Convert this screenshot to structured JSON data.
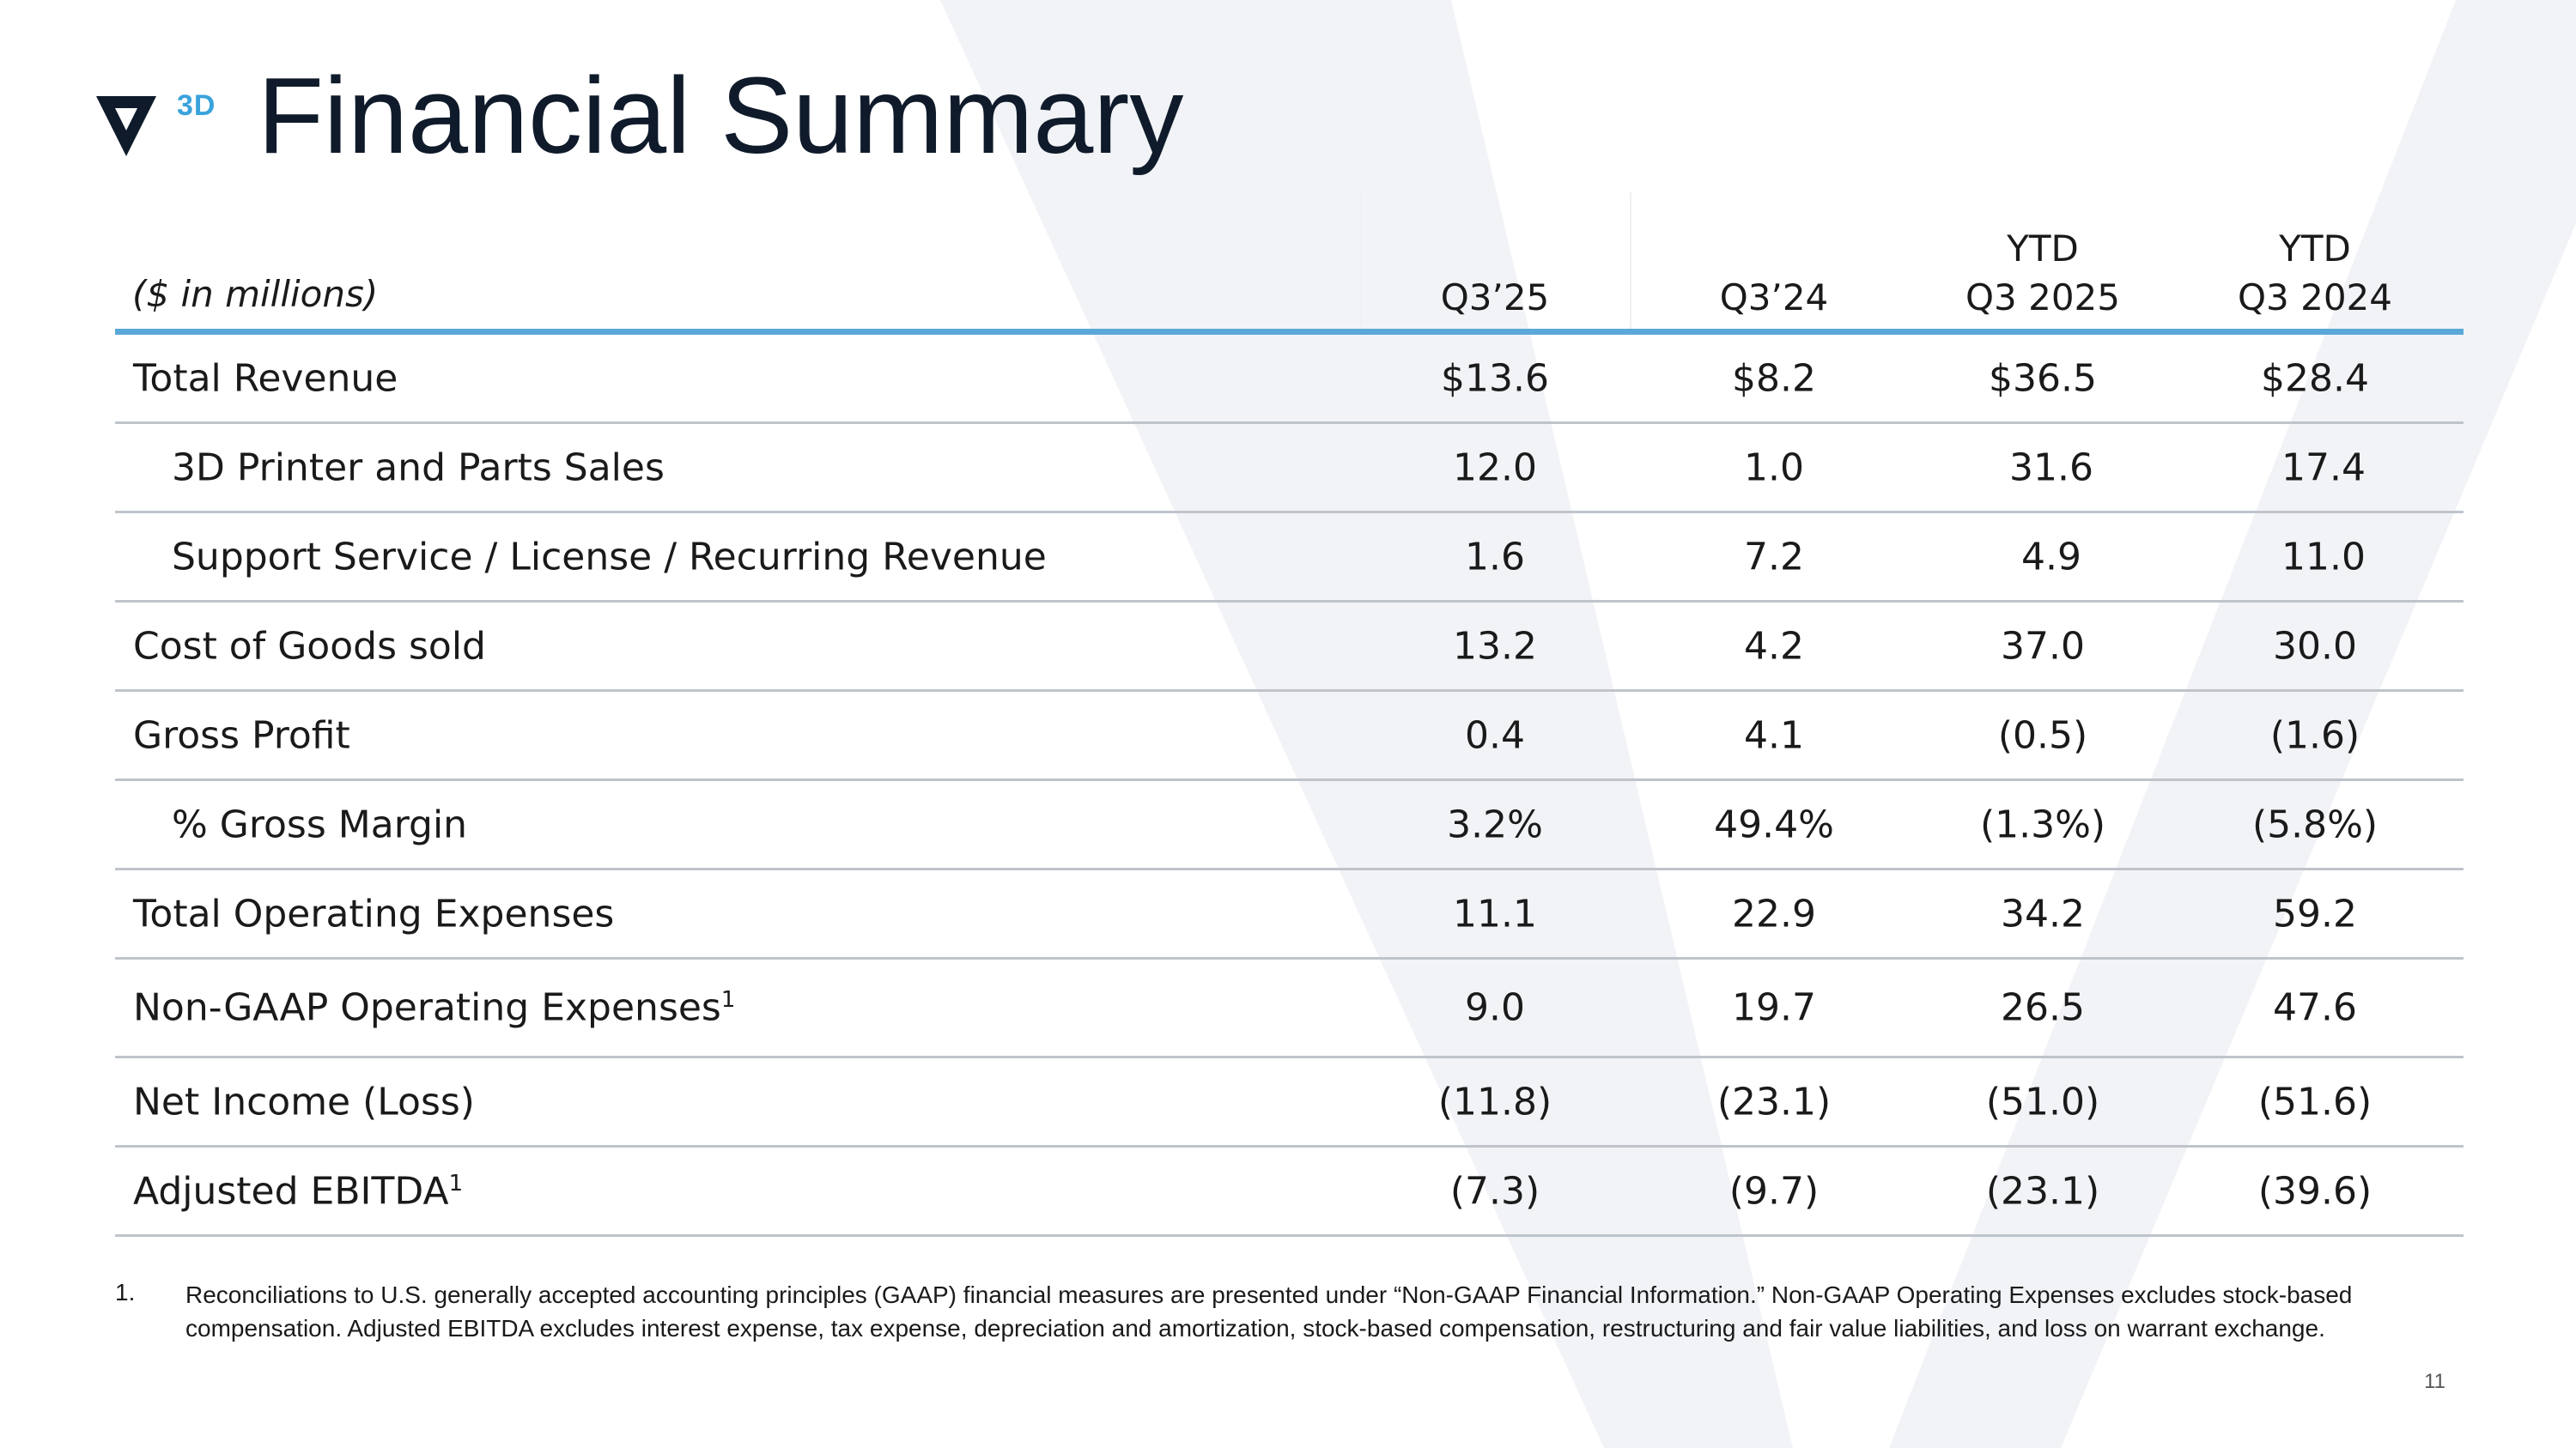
{
  "brand": {
    "logo_suffix": "3D",
    "accent": "#3aa3dc",
    "logo_color": "#0f1b2b"
  },
  "title": "Financial Summary",
  "table": {
    "unit_label": "($ in millions)",
    "columns": [
      {
        "line1": "",
        "line2": "Q3’25"
      },
      {
        "line1": "",
        "line2": "Q3’24"
      },
      {
        "line1": "YTD",
        "line2": "Q3 2025"
      },
      {
        "line1": "YTD",
        "line2": "Q3 2024"
      }
    ],
    "rows": [
      {
        "label": "Total Revenue",
        "values": [
          "$13.6",
          "$8.2",
          "$36.5",
          "$28.4"
        ]
      },
      {
        "label": "3D Printer and Parts Sales",
        "values": [
          "12.0",
          "1.0",
          "31.6",
          "17.4"
        ]
      },
      {
        "label": "Support Service / License / Recurring Revenue",
        "values": [
          "1.6",
          "7.2",
          "4.9",
          "11.0"
        ]
      },
      {
        "label": "Cost of Goods sold",
        "values": [
          "13.2",
          "4.2",
          "37.0",
          "30.0"
        ]
      },
      {
        "label": "Gross Profit",
        "values": [
          "0.4",
          "4.1",
          "(0.5)",
          "(1.6)"
        ]
      },
      {
        "label": "% Gross Margin",
        "values": [
          "3.2%",
          "49.4%",
          "(1.3%)",
          "(5.8%)"
        ]
      },
      {
        "label": "Total Operating Expenses",
        "values": [
          "11.1",
          "22.9",
          "34.2",
          "59.2"
        ]
      },
      {
        "label": "Non-GAAP Operating Expenses",
        "sup": "1",
        "values": [
          "9.0",
          "19.7",
          "26.5",
          "47.6"
        ]
      },
      {
        "label": "Net Income (Loss)",
        "values": [
          "(11.8)",
          "(23.1)",
          "(51.0)",
          "(51.6)"
        ]
      },
      {
        "label": "Adjusted EBITDA",
        "sup": "1",
        "values": [
          "(7.3)",
          "(9.7)",
          "(23.1)",
          "(39.6)"
        ]
      }
    ]
  },
  "footnote": {
    "number": "1.",
    "text": "Reconciliations to U.S. generally accepted accounting principles (GAAP) financial measures are presented under “Non-GAAP Financial Information.”  Non-GAAP Operating Expenses excludes stock-based compensation. Adjusted EBITDA excludes interest expense, tax expense, depreciation and amortization, stock-based compensation, restructuring and fair value liabilities, and loss on warrant exchange."
  },
  "page_number": "11"
}
